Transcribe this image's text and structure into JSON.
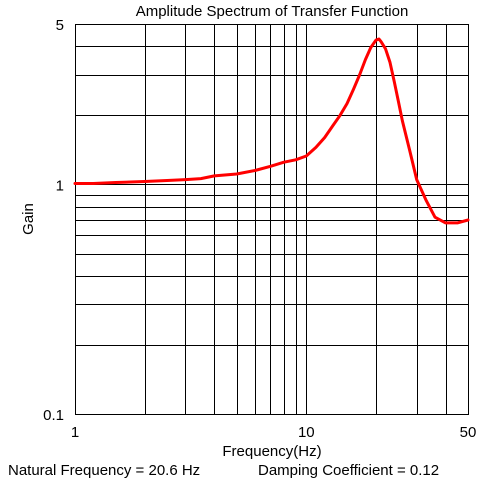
{
  "chart_data": {
    "type": "line",
    "title": "Amplitude Spectrum of Transfer Function",
    "xlabel": "Frequency(Hz)",
    "ylabel": "Gain",
    "x_scale": "log",
    "y_scale": "log",
    "xlim": [
      1,
      50
    ],
    "ylim": [
      0.1,
      5
    ],
    "x_tick_labels": [
      {
        "value": 1,
        "label": "1"
      },
      {
        "value": 10,
        "label": "10"
      },
      {
        "value": 50,
        "label": "50"
      }
    ],
    "y_tick_labels": [
      {
        "value": 5,
        "label": "5"
      },
      {
        "value": 1,
        "label": "1"
      },
      {
        "value": 0.1,
        "label": "0.1"
      }
    ],
    "x_gridlines": [
      2,
      3,
      4,
      5,
      6,
      7,
      8,
      9,
      10,
      20,
      30,
      40
    ],
    "y_gridlines": [
      0.2,
      0.3,
      0.4,
      0.5,
      0.6,
      0.7,
      0.8,
      0.9,
      1,
      2,
      3,
      4
    ],
    "grid": true,
    "series": [
      {
        "color": "#ff0000",
        "x": [
          1,
          1.2,
          1.5,
          2,
          2.5,
          3,
          3.5,
          4,
          5,
          6,
          7,
          8,
          9,
          10,
          11,
          12,
          13,
          14,
          15,
          16,
          17,
          18,
          19,
          20,
          20.6,
          21,
          22,
          23,
          24,
          25,
          26,
          28,
          30,
          33,
          36,
          40,
          45,
          50
        ],
        "y": [
          1.01,
          1.01,
          1.02,
          1.03,
          1.04,
          1.05,
          1.06,
          1.09,
          1.11,
          1.15,
          1.2,
          1.25,
          1.28,
          1.33,
          1.45,
          1.6,
          1.8,
          2.0,
          2.25,
          2.6,
          3.0,
          3.5,
          3.95,
          4.25,
          4.3,
          4.2,
          3.9,
          3.4,
          2.8,
          2.3,
          1.9,
          1.4,
          1.05,
          0.85,
          0.72,
          0.68,
          0.68,
          0.7
        ]
      }
    ]
  },
  "footer": {
    "natural_frequency": "Natural Frequency = 20.6 Hz",
    "damping_coefficient": "Damping Coefficient = 0.12"
  }
}
